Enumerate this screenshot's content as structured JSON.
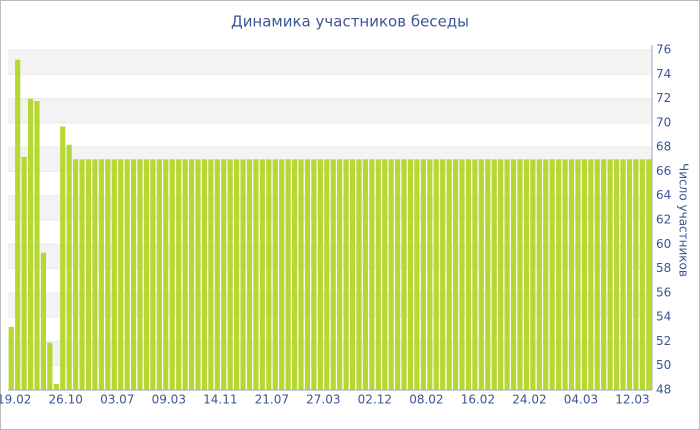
{
  "chart_data": {
    "type": "bar",
    "title": "Динамика участников беседы",
    "y_label": "Число участников",
    "categories": [
      "19.02",
      null,
      null,
      null,
      null,
      null,
      null,
      null,
      "26.10",
      null,
      null,
      null,
      null,
      null,
      null,
      null,
      "03.07",
      null,
      null,
      null,
      null,
      null,
      null,
      null,
      "09.03",
      null,
      null,
      null,
      null,
      null,
      null,
      null,
      "14.11",
      null,
      null,
      null,
      null,
      null,
      null,
      null,
      "21.07",
      null,
      null,
      null,
      null,
      null,
      null,
      null,
      "27.03",
      null,
      null,
      null,
      null,
      null,
      null,
      null,
      "02.12",
      null,
      null,
      null,
      null,
      null,
      null,
      null,
      "08.02",
      null,
      null,
      null,
      null,
      null,
      null,
      null,
      "16.02",
      null,
      null,
      null,
      null,
      null,
      null,
      null,
      "24.02",
      null,
      null,
      null,
      null,
      null,
      null,
      null,
      "04.03",
      null,
      null,
      null,
      null,
      null,
      null,
      null,
      "12.03",
      null,
      null,
      null
    ],
    "values": [
      53.2,
      75.2,
      67.2,
      72,
      71.8,
      59.3,
      51.9,
      48.5,
      69.7,
      68.2,
      67,
      67,
      67,
      67,
      67,
      67,
      67,
      67,
      67,
      67,
      67,
      67,
      67,
      67,
      67,
      67,
      67,
      67,
      67,
      67,
      67,
      67,
      67,
      67,
      67,
      67,
      67,
      67,
      67,
      67,
      67,
      67,
      67,
      67,
      67,
      67,
      67,
      67,
      67,
      67,
      67,
      67,
      67,
      67,
      67,
      67,
      67,
      67,
      67,
      67,
      67,
      67,
      67,
      67,
      67,
      67,
      67,
      67,
      67,
      67,
      67,
      67,
      67,
      67,
      67,
      67,
      67,
      67,
      67,
      67,
      67,
      67,
      67,
      67,
      67,
      67,
      67,
      67,
      67,
      67,
      67,
      67,
      67,
      67,
      67,
      67,
      67,
      67,
      67,
      67
    ],
    "color": "#b5d832",
    "ylim": [
      48,
      76
    ],
    "yticks": [
      48,
      50,
      52,
      54,
      56,
      58,
      60,
      62,
      64,
      66,
      68,
      70,
      72,
      74,
      76
    ],
    "grid": true,
    "y_axis_side": "right"
  }
}
